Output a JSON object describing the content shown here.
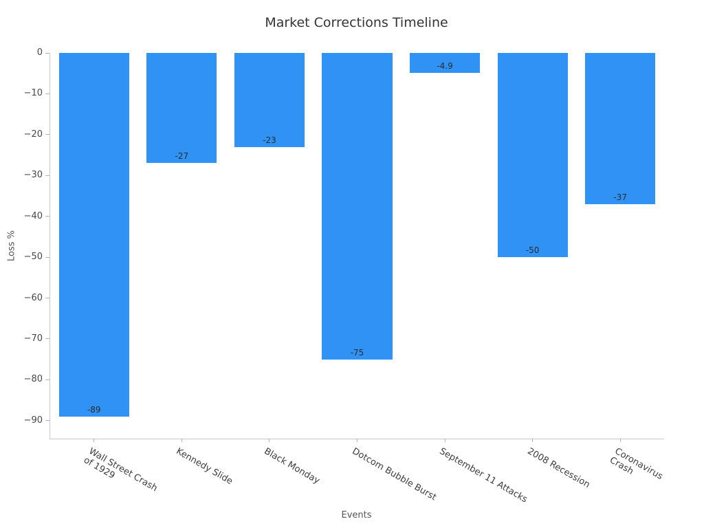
{
  "chart_data": {
    "type": "bar",
    "title": "Market Corrections Timeline",
    "xlabel": "Events",
    "ylabel": "Loss %",
    "categories": [
      "Wall Street Crash\nof 1929",
      "Kennedy Slide",
      "Black Monday",
      "Dotcom Bubble Burst",
      "September 11 Attacks",
      "2008 Recession",
      "Coronavirus Crash"
    ],
    "values": [
      -89,
      -27,
      -23,
      -75,
      -4.9,
      -50,
      -37
    ],
    "bar_labels": [
      "-89",
      "-27",
      "-23",
      "-75",
      "-4.9",
      "-50",
      "-37"
    ],
    "yticks": [
      0,
      -10,
      -20,
      -30,
      -40,
      -50,
      -60,
      -70,
      -80,
      -90
    ],
    "ylim": [
      -94.4,
      0
    ],
    "bar_color": "#2F92F4",
    "bar_width_fraction": 0.8,
    "grid": false,
    "legend": null,
    "value_label_position": "inside-bottom",
    "xtick_rotation_deg": 30
  }
}
